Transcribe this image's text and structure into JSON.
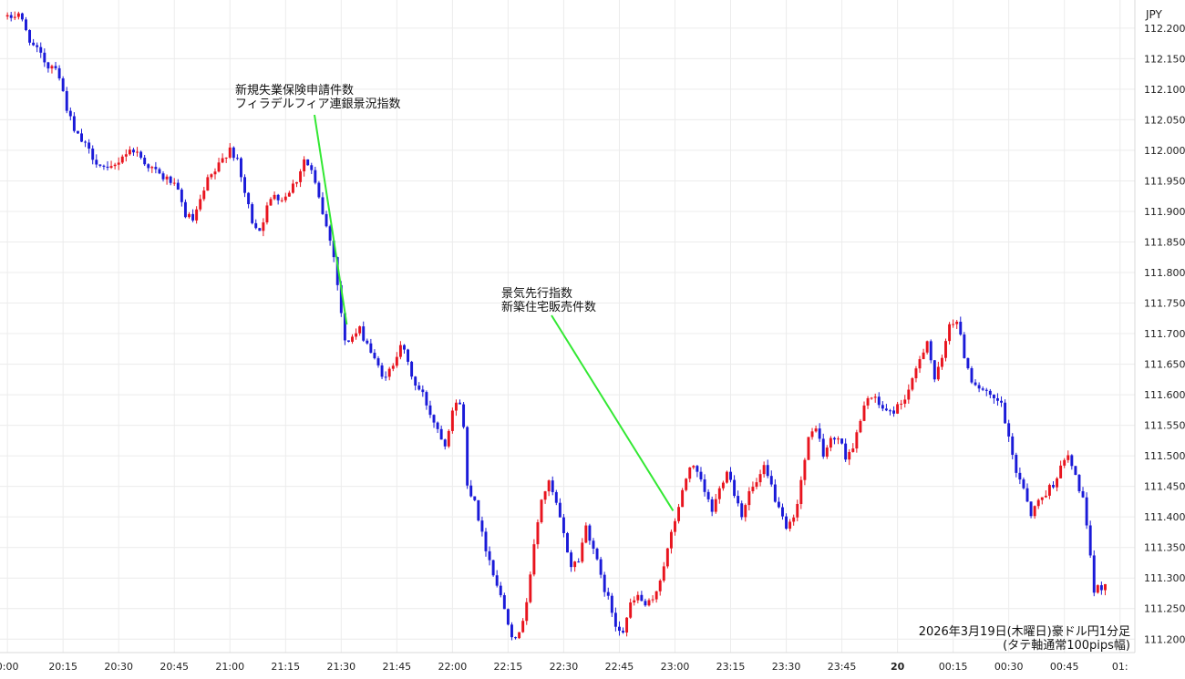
{
  "chart_data": {
    "type": "candlestick",
    "title": "",
    "currency_label": "JPY",
    "caption": [
      "2026年3月19日(木曜日)豪ドル円1分足",
      "(タテ軸通常100pips幅)"
    ],
    "x_ticks": [
      {
        "label": "0:00",
        "t": 0
      },
      {
        "label": "20:15",
        "t": 15
      },
      {
        "label": "20:30",
        "t": 30
      },
      {
        "label": "20:45",
        "t": 45
      },
      {
        "label": "21:00",
        "t": 60
      },
      {
        "label": "21:15",
        "t": 75
      },
      {
        "label": "21:30",
        "t": 90
      },
      {
        "label": "21:45",
        "t": 105
      },
      {
        "label": "22:00",
        "t": 120
      },
      {
        "label": "22:15",
        "t": 135
      },
      {
        "label": "22:30",
        "t": 150
      },
      {
        "label": "22:45",
        "t": 165
      },
      {
        "label": "23:00",
        "t": 180
      },
      {
        "label": "23:15",
        "t": 195
      },
      {
        "label": "23:30",
        "t": 210
      },
      {
        "label": "23:45",
        "t": 225
      },
      {
        "label": "20",
        "t": 240,
        "bold": true
      },
      {
        "label": "00:15",
        "t": 255
      },
      {
        "label": "00:30",
        "t": 270
      },
      {
        "label": "00:45",
        "t": 285
      },
      {
        "label": "01:",
        "t": 300
      }
    ],
    "y_ticks": [
      "112.200",
      "112.150",
      "112.100",
      "112.050",
      "112.000",
      "111.950",
      "111.900",
      "111.850",
      "111.800",
      "111.750",
      "111.700",
      "111.650",
      "111.600",
      "111.550",
      "111.500",
      "111.450",
      "111.400",
      "111.350",
      "111.300",
      "111.250",
      "111.200"
    ],
    "ylim": [
      111.178,
      112.246
    ],
    "xlim": [
      -2,
      304
    ],
    "grid": true,
    "up_color": "#e8141e",
    "down_color": "#1a1ad8",
    "annotation_color": "#33e833",
    "annotations": [
      {
        "lines": [
          "新規失業保険申請件数",
          "フィラデルフィア連銀景況指数"
        ],
        "t": 91.5,
        "price": 111.715
      },
      {
        "lines": [
          "景気先行指数",
          "新築住宅販売件数"
        ],
        "t": 179.5,
        "price": 111.41
      }
    ],
    "close_path": [
      [
        0,
        112.215
      ],
      [
        3,
        112.225
      ],
      [
        5,
        112.195
      ],
      [
        7,
        112.17
      ],
      [
        9,
        112.155
      ],
      [
        11,
        112.138
      ],
      [
        13,
        112.14
      ],
      [
        14,
        112.12
      ],
      [
        16,
        112.07
      ],
      [
        18,
        112.03
      ],
      [
        20,
        112.015
      ],
      [
        23,
        111.99
      ],
      [
        25,
        111.975
      ],
      [
        27,
        111.965
      ],
      [
        29,
        111.975
      ],
      [
        31,
        111.992
      ],
      [
        34,
        112.002
      ],
      [
        36,
        111.988
      ],
      [
        38,
        111.975
      ],
      [
        40,
        111.965
      ],
      [
        42,
        111.955
      ],
      [
        44,
        111.95
      ],
      [
        46,
        111.93
      ],
      [
        48,
        111.895
      ],
      [
        50,
        111.885
      ],
      [
        52,
        111.915
      ],
      [
        54,
        111.95
      ],
      [
        56,
        111.965
      ],
      [
        58,
        111.985
      ],
      [
        60,
        112.005
      ],
      [
        62,
        111.98
      ],
      [
        64,
        111.93
      ],
      [
        66,
        111.885
      ],
      [
        68,
        111.87
      ],
      [
        70,
        111.905
      ],
      [
        72,
        111.93
      ],
      [
        74,
        111.92
      ],
      [
        76,
        111.935
      ],
      [
        78,
        111.952
      ],
      [
        80,
        111.985
      ],
      [
        82,
        111.965
      ],
      [
        84,
        111.92
      ],
      [
        86,
        111.875
      ],
      [
        88,
        111.83
      ],
      [
        89,
        111.78
      ],
      [
        90,
        111.735
      ],
      [
        91,
        111.685
      ],
      [
        93,
        111.695
      ],
      [
        95,
        111.705
      ],
      [
        97,
        111.685
      ],
      [
        99,
        111.655
      ],
      [
        102,
        111.625
      ],
      [
        104,
        111.652
      ],
      [
        106,
        111.685
      ],
      [
        108,
        111.65
      ],
      [
        110,
        111.615
      ],
      [
        112,
        111.6
      ],
      [
        114,
        111.57
      ],
      [
        116,
        111.545
      ],
      [
        118,
        111.52
      ],
      [
        120,
        111.575
      ],
      [
        122,
        111.59
      ],
      [
        123,
        111.545
      ],
      [
        124,
        111.45
      ],
      [
        126,
        111.43
      ],
      [
        128,
        111.37
      ],
      [
        130,
        111.33
      ],
      [
        132,
        111.29
      ],
      [
        134,
        111.25
      ],
      [
        136,
        111.21
      ],
      [
        138,
        111.205
      ],
      [
        140,
        111.265
      ],
      [
        142,
        111.35
      ],
      [
        144,
        111.43
      ],
      [
        146,
        111.455
      ],
      [
        148,
        111.42
      ],
      [
        150,
        111.37
      ],
      [
        152,
        111.32
      ],
      [
        154,
        111.33
      ],
      [
        156,
        111.385
      ],
      [
        158,
        111.35
      ],
      [
        160,
        111.3
      ],
      [
        162,
        111.265
      ],
      [
        164,
        111.225
      ],
      [
        166,
        111.215
      ],
      [
        168,
        111.255
      ],
      [
        170,
        111.27
      ],
      [
        172,
        111.255
      ],
      [
        174,
        111.26
      ],
      [
        176,
        111.3
      ],
      [
        178,
        111.345
      ],
      [
        180,
        111.395
      ],
      [
        182,
        111.44
      ],
      [
        184,
        111.485
      ],
      [
        186,
        111.47
      ],
      [
        188,
        111.44
      ],
      [
        190,
        111.41
      ],
      [
        192,
        111.445
      ],
      [
        194,
        111.48
      ],
      [
        196,
        111.44
      ],
      [
        198,
        111.405
      ],
      [
        200,
        111.44
      ],
      [
        202,
        111.455
      ],
      [
        204,
        111.478
      ],
      [
        206,
        111.45
      ],
      [
        208,
        111.41
      ],
      [
        210,
        111.378
      ],
      [
        212,
        111.395
      ],
      [
        214,
        111.46
      ],
      [
        216,
        111.525
      ],
      [
        218,
        111.55
      ],
      [
        220,
        111.5
      ],
      [
        222,
        111.525
      ],
      [
        224,
        111.53
      ],
      [
        226,
        111.5
      ],
      [
        228,
        111.515
      ],
      [
        230,
        111.555
      ],
      [
        232,
        111.6
      ],
      [
        234,
        111.59
      ],
      [
        236,
        111.578
      ],
      [
        238,
        111.57
      ],
      [
        240,
        111.58
      ],
      [
        242,
        111.595
      ],
      [
        244,
        111.62
      ],
      [
        246,
        111.66
      ],
      [
        248,
        111.69
      ],
      [
        250,
        111.625
      ],
      [
        252,
        111.655
      ],
      [
        254,
        111.72
      ],
      [
        256,
        111.72
      ],
      [
        258,
        111.665
      ],
      [
        260,
        111.625
      ],
      [
        262,
        111.612
      ],
      [
        264,
        111.6
      ],
      [
        266,
        111.59
      ],
      [
        268,
        111.585
      ],
      [
        270,
        111.525
      ],
      [
        272,
        111.475
      ],
      [
        274,
        111.45
      ],
      [
        276,
        111.405
      ],
      [
        278,
        111.425
      ],
      [
        280,
        111.44
      ],
      [
        282,
        111.455
      ],
      [
        284,
        111.48
      ],
      [
        286,
        111.5
      ],
      [
        288,
        111.465
      ],
      [
        290,
        111.43
      ],
      [
        291,
        111.38
      ],
      [
        292,
        111.33
      ],
      [
        293,
        111.28
      ],
      [
        296,
        111.29
      ]
    ]
  }
}
